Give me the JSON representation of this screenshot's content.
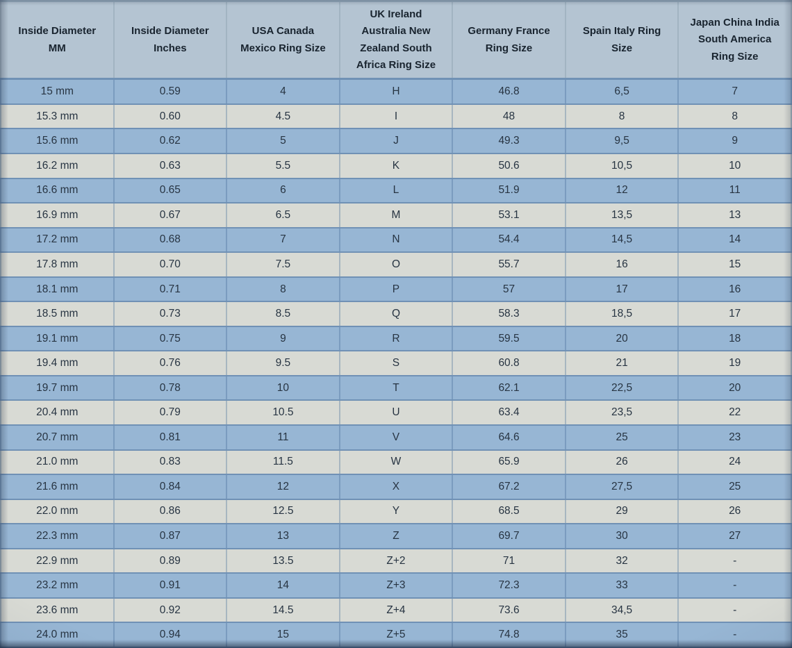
{
  "colors": {
    "header_bg": "#b4c4d2",
    "header_vborder": "#a2b4c2",
    "header_top": "#94a9ba",
    "row_blue": "#97b6d4",
    "row_light": "#d8dad4",
    "blue_vborder": "#7b9cbf",
    "light_vborder": "#a7b6c0",
    "border_dark": "#7091b5",
    "text_header": "#19242f",
    "text_cell": "#273442"
  },
  "chart_data": {
    "type": "table",
    "columns": [
      "Inside Diameter MM",
      "Inside Diameter Inches",
      "USA Canada Mexico Ring Size",
      "UK Ireland Australia New Zealand South Africa Ring Size",
      "Germany France Ring Size",
      "Spain Italy Ring Size",
      "Japan China India South America Ring Size"
    ],
    "rows": [
      [
        "15 mm",
        "0.59",
        "4",
        "H",
        "46.8",
        "6,5",
        "7"
      ],
      [
        "15.3 mm",
        "0.60",
        "4.5",
        "I",
        "48",
        "8",
        "8"
      ],
      [
        "15.6 mm",
        "0.62",
        "5",
        "J",
        "49.3",
        "9,5",
        "9"
      ],
      [
        "16.2 mm",
        "0.63",
        "5.5",
        "K",
        "50.6",
        "10,5",
        "10"
      ],
      [
        "16.6 mm",
        "0.65",
        "6",
        "L",
        "51.9",
        "12",
        "11"
      ],
      [
        "16.9 mm",
        "0.67",
        "6.5",
        "M",
        "53.1",
        "13,5",
        "13"
      ],
      [
        "17.2 mm",
        "0.68",
        "7",
        "N",
        "54.4",
        "14,5",
        "14"
      ],
      [
        "17.8 mm",
        "0.70",
        "7.5",
        "O",
        "55.7",
        "16",
        "15"
      ],
      [
        "18.1 mm",
        "0.71",
        "8",
        "P",
        "57",
        "17",
        "16"
      ],
      [
        "18.5 mm",
        "0.73",
        "8.5",
        "Q",
        "58.3",
        "18,5",
        "17"
      ],
      [
        "19.1 mm",
        "0.75",
        "9",
        "R",
        "59.5",
        "20",
        "18"
      ],
      [
        "19.4 mm",
        "0.76",
        "9.5",
        "S",
        "60.8",
        "21",
        "19"
      ],
      [
        "19.7 mm",
        "0.78",
        "10",
        "T",
        "62.1",
        "22,5",
        "20"
      ],
      [
        "20.4 mm",
        "0.79",
        "10.5",
        "U",
        "63.4",
        "23,5",
        "22"
      ],
      [
        "20.7 mm",
        "0.81",
        "11",
        "V",
        "64.6",
        "25",
        "23"
      ],
      [
        "21.0 mm",
        "0.83",
        "11.5",
        "W",
        "65.9",
        "26",
        "24"
      ],
      [
        "21.6 mm",
        "0.84",
        "12",
        "X",
        "67.2",
        "27,5",
        "25"
      ],
      [
        "22.0 mm",
        "0.86",
        "12.5",
        "Y",
        "68.5",
        "29",
        "26"
      ],
      [
        "22.3 mm",
        "0.87",
        "13",
        "Z",
        "69.7",
        "30",
        "27"
      ],
      [
        "22.9 mm",
        "0.89",
        "13.5",
        "Z+2",
        "71",
        "32",
        "-"
      ],
      [
        "23.2 mm",
        "0.91",
        "14",
        "Z+3",
        "72.3",
        "33",
        "-"
      ],
      [
        "23.6 mm",
        "0.92",
        "14.5",
        "Z+4",
        "73.6",
        "34,5",
        "-"
      ],
      [
        "24.0 mm",
        "0.94",
        "15",
        "Z+5",
        "74.8",
        "35",
        "-"
      ]
    ]
  }
}
